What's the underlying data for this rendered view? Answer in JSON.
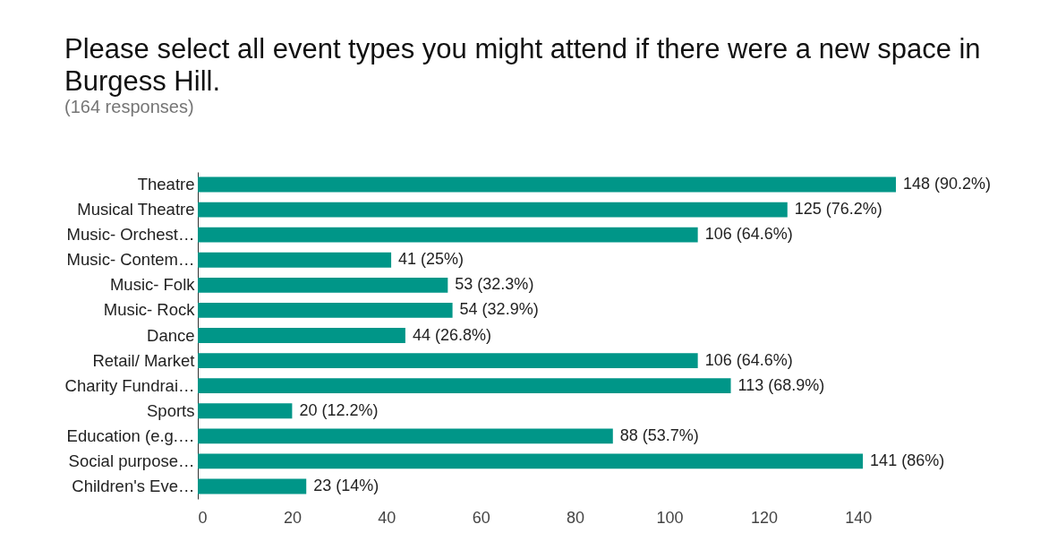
{
  "chart_data": {
    "type": "bar",
    "orientation": "horizontal",
    "title": "Please select all event types you might attend if there were a new space in Burgess Hill.",
    "subtitle": "(164 responses)",
    "categories": [
      "Theatre",
      "Musical Theatre",
      "Music- Orchest…",
      "Music- Contem…",
      "Music- Folk",
      "Music- Rock",
      "Dance",
      "Retail/ Market",
      "Charity Fundrai…",
      "Sports",
      "Education (e.g.…",
      "Social purpose…",
      "Children's Eve…"
    ],
    "values": [
      148,
      125,
      106,
      41,
      53,
      54,
      44,
      106,
      113,
      20,
      88,
      141,
      23
    ],
    "value_labels": [
      "148 (90.2%)",
      "125 (76.2%)",
      "106 (64.6%)",
      "41 (25%)",
      "53 (32.3%)",
      "54 (32.9%)",
      "44 (26.8%)",
      "106 (64.6%)",
      "113 (68.9%)",
      "20 (12.2%)",
      "88 (53.7%)",
      "141 (86%)",
      "23 (14%)"
    ],
    "color": "#009688",
    "xlim": [
      0,
      148
    ],
    "xticks": [
      0,
      20,
      40,
      60,
      80,
      100,
      120,
      140
    ]
  }
}
